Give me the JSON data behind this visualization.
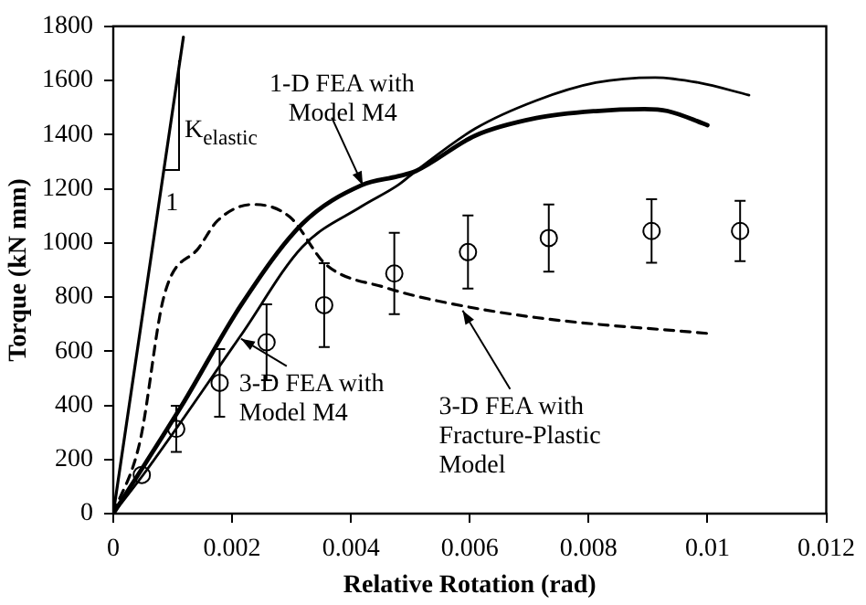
{
  "chart_data": {
    "type": "line",
    "xlabel": "Relative Rotation (rad)",
    "ylabel": "Torque (kN mm)",
    "xlim": [
      0,
      0.012
    ],
    "xticks": [
      0,
      0.002,
      0.004,
      0.006,
      0.008,
      {
        "value": 0.01,
        "label": "0.01"
      },
      0.012
    ],
    "ylim": [
      0,
      1800
    ],
    "yticks": [
      0,
      200,
      400,
      600,
      800,
      1000,
      1200,
      1400,
      1600,
      1800
    ],
    "grid": false,
    "legend": false,
    "series": [
      {
        "color": "#000000",
        "line_style": "solid",
        "marker": "none",
        "x": [
          0,
          0.00118
        ],
        "values": [
          0,
          1760
        ]
      },
      {
        "color": "#000000",
        "line_style": "solid",
        "marker": "none",
        "x": [
          0,
          0.00115,
          0.00215,
          0.00318,
          0.00418,
          0.00479,
          0.00509,
          0.00609,
          0.00712,
          0.00812,
          0.00894,
          0.00933,
          0.01
        ],
        "values": [
          0,
          398,
          770,
          1070,
          1213,
          1246,
          1265,
          1396,
          1461,
          1487,
          1494,
          1487,
          1435
        ]
      },
      {
        "color": "#000000",
        "line_style": "solid",
        "marker": "none",
        "x": [
          0,
          0.00055,
          0.00215,
          0.00318,
          0.00418,
          0.00479,
          0.00509,
          0.00609,
          0.00712,
          0.00812,
          0.00912,
          0.00985,
          0.0107
        ],
        "values": [
          0,
          157,
          659,
          985,
          1135,
          1213,
          1265,
          1422,
          1526,
          1592,
          1611,
          1592,
          1546
        ]
      },
      {
        "color": "#000000",
        "line_style": "dashed",
        "marker": "none",
        "x": [
          0,
          0.00045,
          0.00085,
          0.00145,
          0.00176,
          0.00236,
          0.00297,
          0.00358,
          0.00458,
          0.00539,
          0.00712,
          0.01003
        ],
        "values": [
          0,
          267,
          800,
          985,
          1083,
          1142,
          1096,
          920,
          835,
          789,
          724,
          665
        ]
      },
      {
        "type": "scatter",
        "color": "#000000",
        "marker": "circle",
        "x": [
          0.00048,
          0.00106,
          0.00179,
          0.00258,
          0.00355,
          0.00473,
          0.00597,
          0.00733,
          0.00906,
          0.01055
        ],
        "values": [
          143,
          313,
          483,
          633,
          770,
          887,
          966,
          1018,
          1044,
          1044
        ],
        "errors": [
          null,
          85,
          125,
          140,
          155,
          150,
          135,
          124,
          117,
          111
        ]
      }
    ],
    "annotations": [
      {
        "text": "1-D FEA with\nModel M4",
        "x": 0.0042,
        "y": 1213
      },
      {
        "text": "3-D FEA with\nModel M4",
        "x": 0.00215,
        "y": 646
      },
      {
        "text": "3-D FEA with\nFracture-Plastic\nModel",
        "x": 0.00588,
        "y": 750
      },
      "K$_{elastic}$",
      {
        "text": "1",
        "x": 0.00082,
        "y": 1220
      }
    ]
  }
}
